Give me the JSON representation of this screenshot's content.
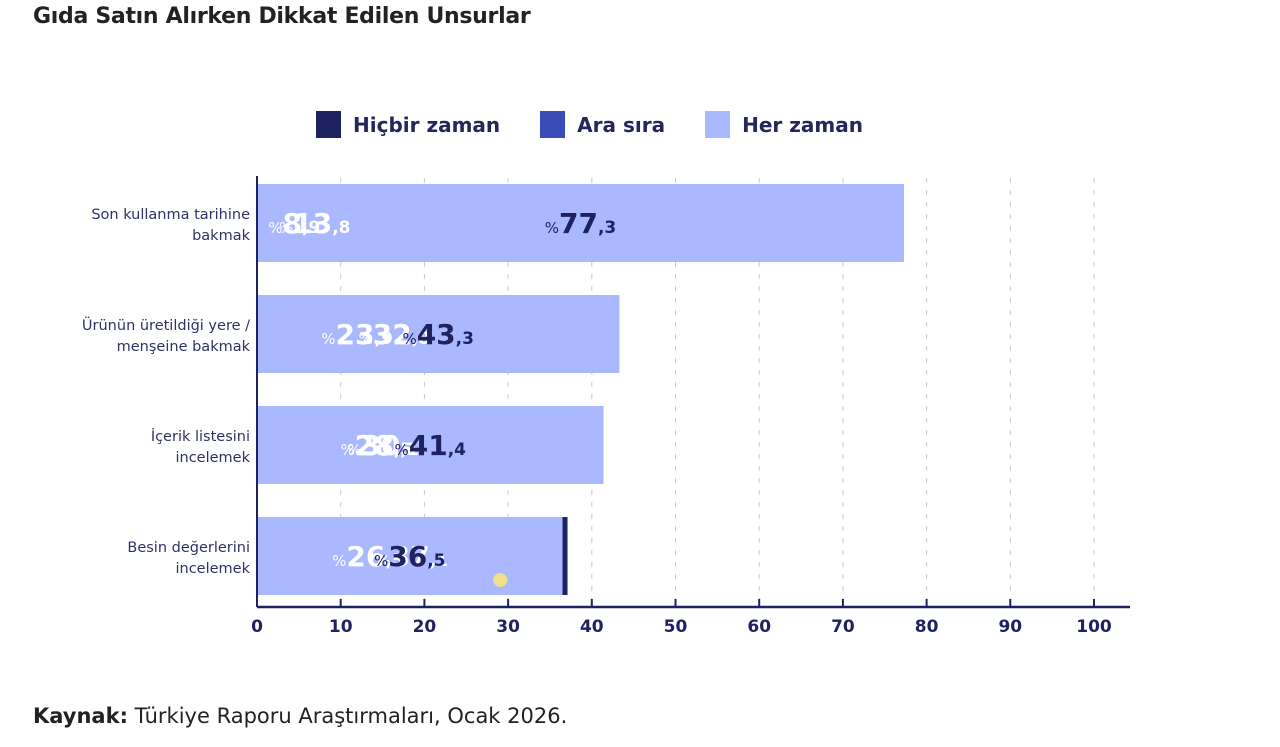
{
  "header": {
    "title": "Gıda Satın Alırken Dikkat Edilen Unsurlar"
  },
  "footer": {
    "source_label": "Kaynak:",
    "source_text": "Türkiye Raporu Araştırmaları, Ocak 2026."
  },
  "chart_data": {
    "type": "bar",
    "orientation": "horizontal",
    "stacked": true,
    "title": "Gıda Satın Alırken Dikkat Edilen Unsurlar",
    "xlabel": "",
    "ylabel": "",
    "xlim": [
      0,
      100
    ],
    "x_ticks": [
      0,
      10,
      20,
      30,
      40,
      50,
      60,
      70,
      80,
      90,
      100
    ],
    "grid": "vertical-dashed",
    "legend_position": "top-center",
    "value_prefix": "%",
    "decimal_separator": ",",
    "categories": [
      "Son kullanma tarihine bakmak",
      "Ürünün üretildiği yere / menşeine bakmak",
      "İçerik listesini incelemek",
      "Besin değerlerini incelemek"
    ],
    "category_lines": [
      [
        "Son kullanma tarihine",
        "bakmak"
      ],
      [
        "Ürünün üretildiği yere /",
        "menşeine bakmak"
      ],
      [
        "İçerik listesini",
        "incelemek"
      ],
      [
        "Besin değerlerini",
        "incelemek"
      ]
    ],
    "series": [
      {
        "name": "Hiçbir zaman",
        "color": "#1e2260",
        "label_color": "#ffffff",
        "values": [
          8.9,
          32.8,
          28.5,
          37.1
        ]
      },
      {
        "name": "Ara sıra",
        "color": "#3a4db7",
        "label_color": "#ffffff",
        "values": [
          13.8,
          23.9,
          30.1,
          26.5
        ]
      },
      {
        "name": "Her zaman",
        "color": "#a9b8ff",
        "label_color": "#1e2260",
        "values": [
          77.3,
          43.3,
          41.4,
          36.5
        ]
      }
    ],
    "annotations": [
      {
        "type": "marker",
        "shape": "dot",
        "color": "#f0e08c",
        "x": 29,
        "category": "Besin değerlerini incelemek"
      }
    ]
  },
  "colors": {
    "axis": "#1e2260",
    "text": "#2f3266",
    "grid": "#c8cad6"
  }
}
